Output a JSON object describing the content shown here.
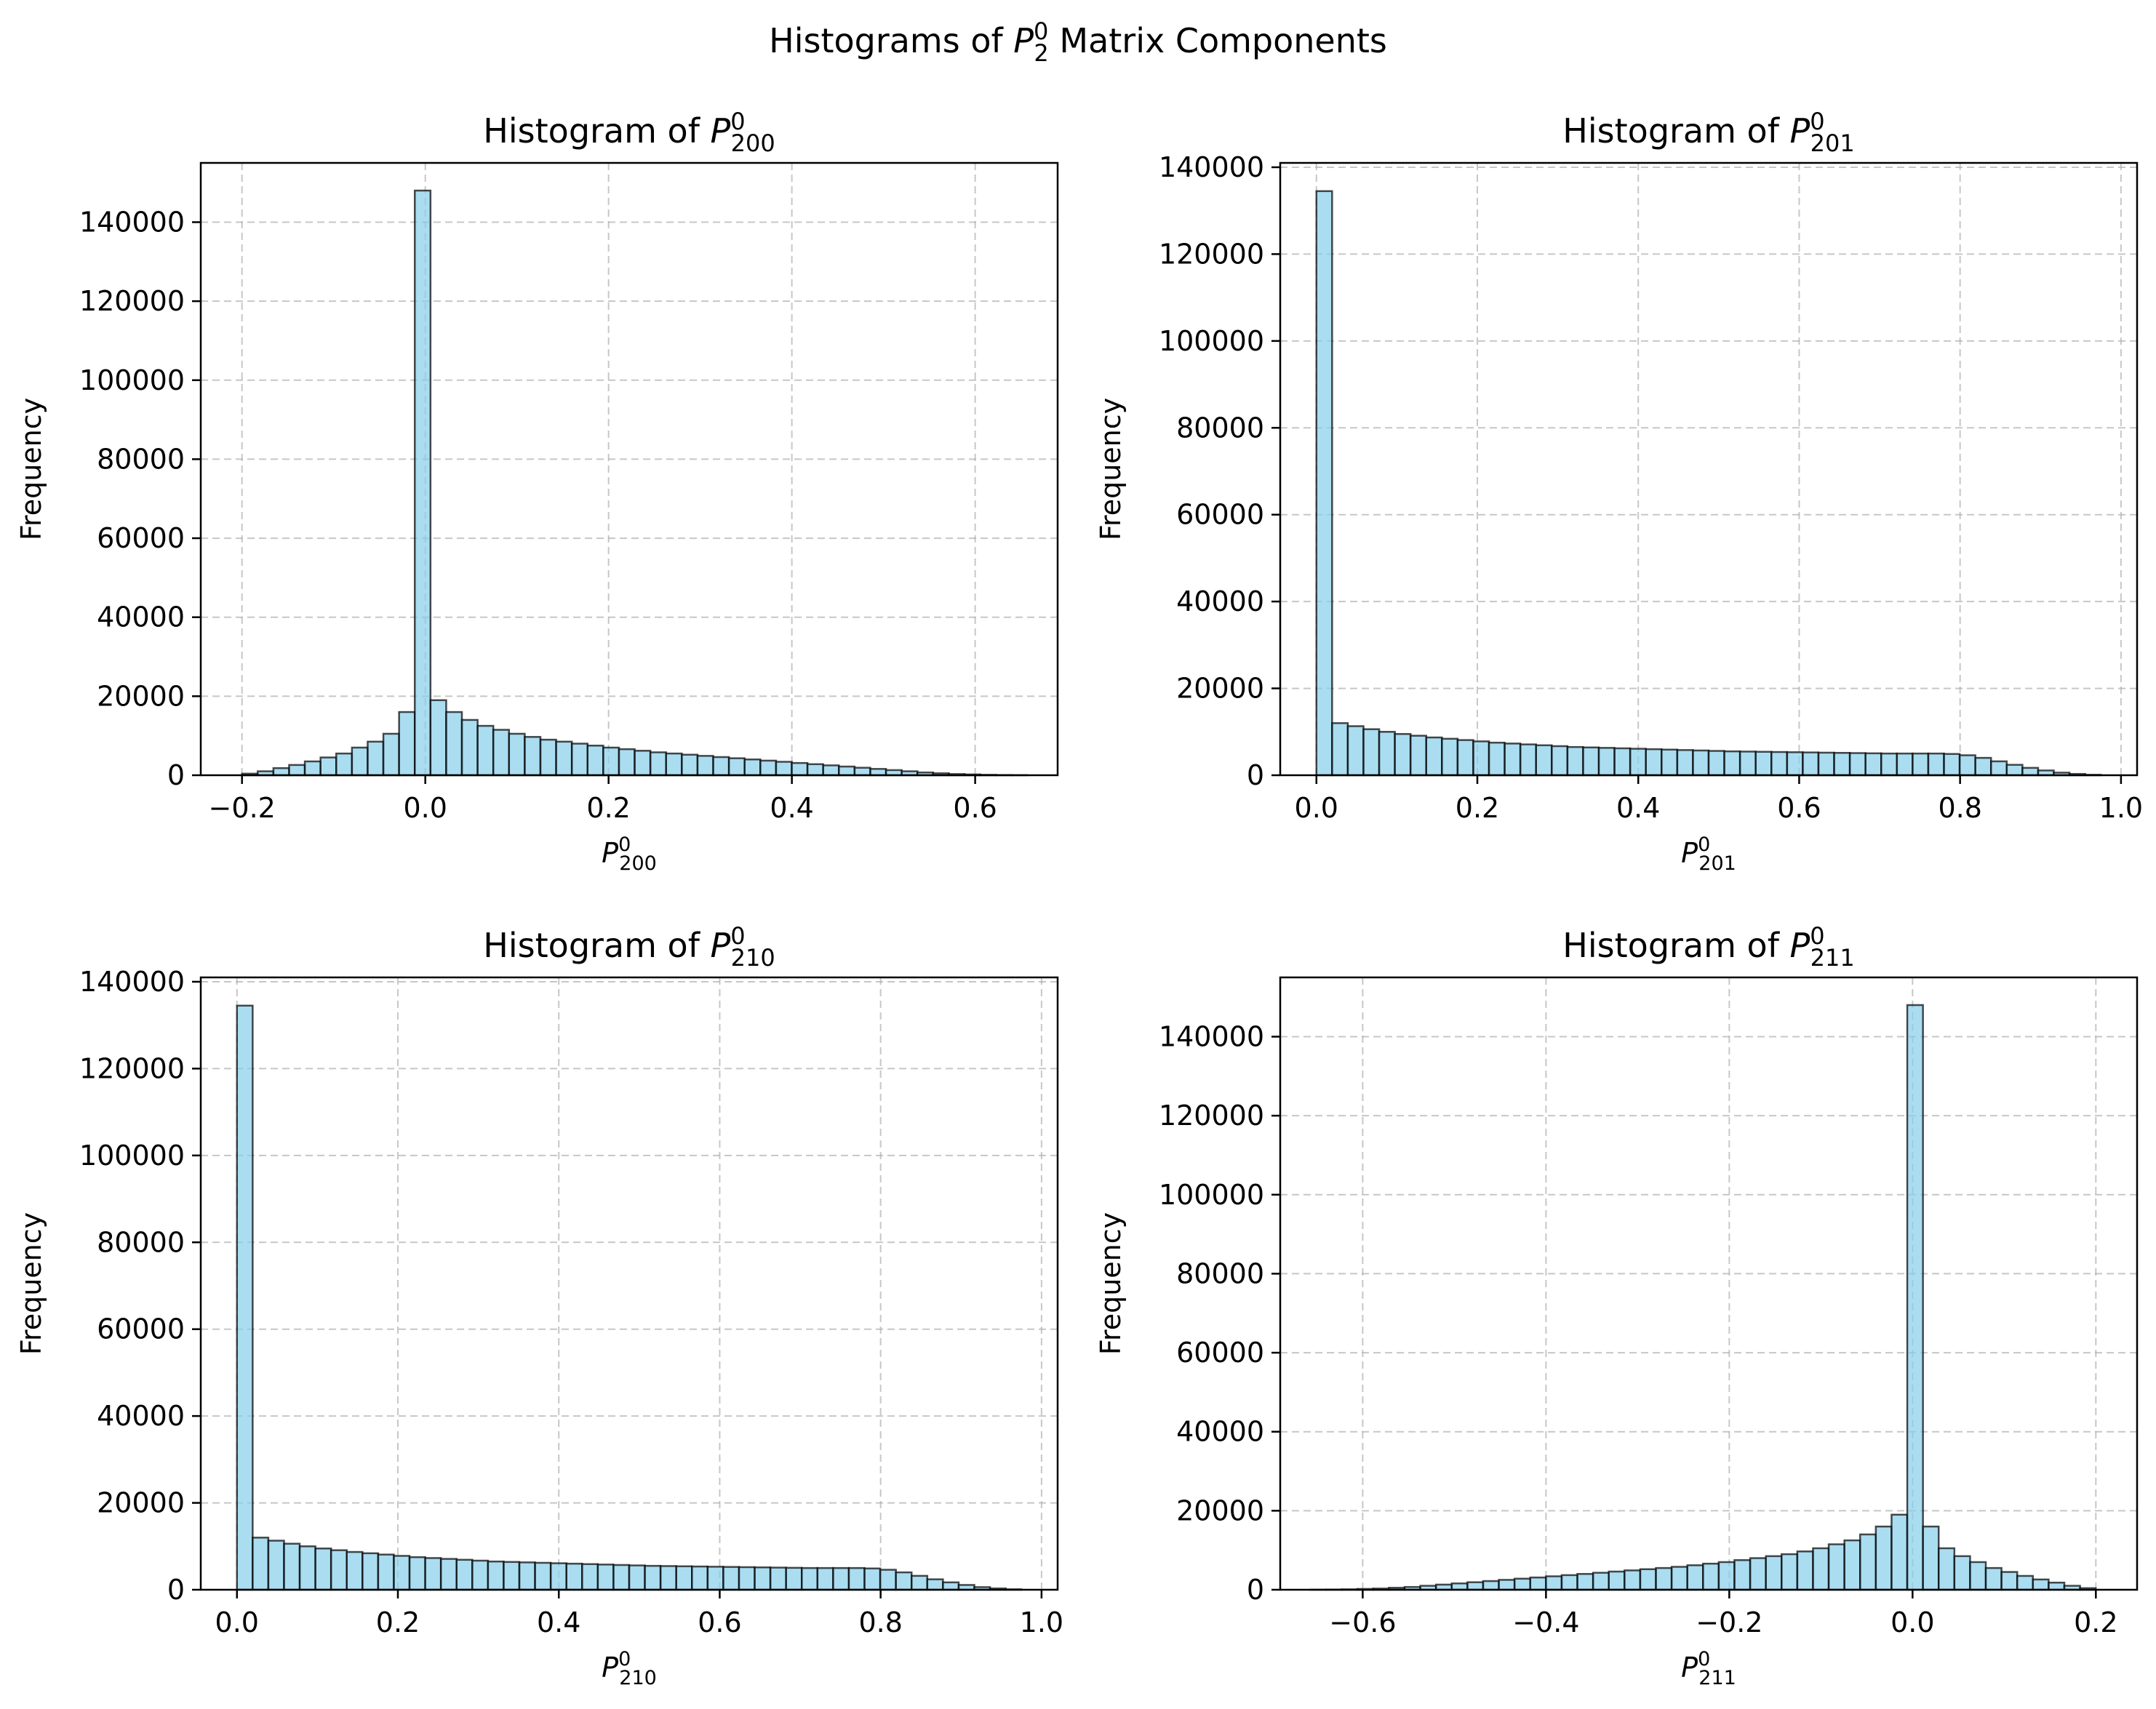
{
  "figure": {
    "suptitle_prefix": "Histograms of ",
    "suptitle_sym": "P",
    "suptitle_sup": "0",
    "suptitle_sub": "2",
    "suptitle_suffix": " Matrix Components"
  },
  "colors": {
    "bar_fill": "#87ceeb",
    "bar_edge": "#000000",
    "grid": "#b0b0b0"
  },
  "chart_data": [
    {
      "type": "bar",
      "title_prefix": "Histogram of ",
      "sym": "P",
      "sup": "0",
      "sub": "2",
      "idx": "00",
      "ylabel": "Frequency",
      "xlim": [
        -0.245,
        0.69
      ],
      "ylim": [
        0,
        155000
      ],
      "xticks": [
        -0.2,
        0.0,
        0.2,
        0.4,
        0.6
      ],
      "xtick_labels": [
        "−0.2",
        "0.0",
        "0.2",
        "0.4",
        "0.6"
      ],
      "yticks": [
        0,
        20000,
        40000,
        60000,
        80000,
        100000,
        120000,
        140000
      ],
      "grid": true,
      "bin_start": -0.2,
      "bin_width": 0.01714,
      "counts": [
        400,
        1000,
        1800,
        2600,
        3500,
        4500,
        5500,
        7000,
        8500,
        10500,
        16000,
        148000,
        19000,
        16000,
        14000,
        12500,
        11500,
        10500,
        9700,
        9000,
        8500,
        8000,
        7500,
        7000,
        6600,
        6200,
        5800,
        5500,
        5200,
        4900,
        4600,
        4300,
        4000,
        3700,
        3400,
        3100,
        2800,
        2500,
        2200,
        1900,
        1600,
        1300,
        1000,
        700,
        500,
        300,
        200,
        100,
        50,
        20
      ]
    },
    {
      "type": "bar",
      "title_prefix": "Histogram of ",
      "sym": "P",
      "sup": "0",
      "sub": "2",
      "idx": "01",
      "ylabel": "Frequency",
      "xlim": [
        -0.045,
        1.02
      ],
      "ylim": [
        0,
        141000
      ],
      "xticks": [
        0.0,
        0.2,
        0.4,
        0.6,
        0.8,
        1.0
      ],
      "xtick_labels": [
        "0.0",
        "0.2",
        "0.4",
        "0.6",
        "0.8",
        "1.0"
      ],
      "yticks": [
        0,
        20000,
        40000,
        60000,
        80000,
        100000,
        120000,
        140000
      ],
      "grid": true,
      "bin_start": 0.0,
      "bin_width": 0.0195,
      "counts": [
        134500,
        12000,
        11300,
        10600,
        10000,
        9500,
        9100,
        8700,
        8400,
        8100,
        7800,
        7500,
        7300,
        7100,
        6900,
        6700,
        6500,
        6400,
        6300,
        6200,
        6100,
        6000,
        5900,
        5800,
        5700,
        5600,
        5500,
        5450,
        5400,
        5350,
        5300,
        5250,
        5200,
        5150,
        5100,
        5050,
        5000,
        5000,
        5000,
        5000,
        4900,
        4600,
        4000,
        3200,
        2400,
        1700,
        1100,
        600,
        300,
        100
      ]
    },
    {
      "type": "bar",
      "title_prefix": "Histogram of ",
      "sym": "P",
      "sup": "0",
      "sub": "2",
      "idx": "10",
      "ylabel": "Frequency",
      "xlim": [
        -0.045,
        1.02
      ],
      "ylim": [
        0,
        141000
      ],
      "xticks": [
        0.0,
        0.2,
        0.4,
        0.6,
        0.8,
        1.0
      ],
      "xtick_labels": [
        "0.0",
        "0.2",
        "0.4",
        "0.6",
        "0.8",
        "1.0"
      ],
      "yticks": [
        0,
        20000,
        40000,
        60000,
        80000,
        100000,
        120000,
        140000
      ],
      "grid": true,
      "bin_start": 0.0,
      "bin_width": 0.0195,
      "counts": [
        134500,
        12000,
        11300,
        10600,
        10000,
        9500,
        9100,
        8700,
        8400,
        8100,
        7800,
        7500,
        7300,
        7100,
        6900,
        6700,
        6500,
        6400,
        6300,
        6200,
        6100,
        6000,
        5900,
        5800,
        5700,
        5600,
        5500,
        5450,
        5400,
        5350,
        5300,
        5250,
        5200,
        5150,
        5100,
        5050,
        5000,
        5000,
        5000,
        5000,
        4900,
        4600,
        4000,
        3200,
        2400,
        1700,
        1100,
        600,
        300,
        100
      ]
    },
    {
      "type": "bar",
      "title_prefix": "Histogram of ",
      "sym": "P",
      "sup": "0",
      "sub": "2",
      "idx": "11",
      "ylabel": "Frequency",
      "xlim": [
        -0.69,
        0.245
      ],
      "ylim": [
        0,
        155000
      ],
      "xticks": [
        -0.6,
        -0.4,
        -0.2,
        0.0,
        0.2
      ],
      "xtick_labels": [
        "−0.6",
        "−0.4",
        "−0.2",
        "0.0",
        "0.2"
      ],
      "yticks": [
        0,
        20000,
        40000,
        60000,
        80000,
        100000,
        120000,
        140000
      ],
      "grid": true,
      "bin_start": -0.6571,
      "bin_width": 0.01714,
      "counts": [
        20,
        50,
        100,
        200,
        300,
        500,
        700,
        1000,
        1300,
        1600,
        1900,
        2200,
        2500,
        2800,
        3100,
        3400,
        3700,
        4000,
        4300,
        4600,
        4900,
        5200,
        5500,
        5800,
        6200,
        6600,
        7000,
        7500,
        8000,
        8500,
        9000,
        9700,
        10500,
        11500,
        12500,
        14000,
        16000,
        19000,
        148000,
        16000,
        10500,
        8500,
        7000,
        5500,
        4500,
        3500,
        2600,
        1800,
        1000,
        400
      ]
    }
  ]
}
